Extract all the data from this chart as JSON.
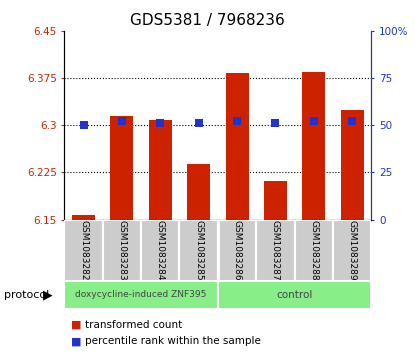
{
  "title": "GDS5381 / 7968236",
  "samples": [
    "GSM1083282",
    "GSM1083283",
    "GSM1083284",
    "GSM1083285",
    "GSM1083286",
    "GSM1083287",
    "GSM1083288",
    "GSM1083289"
  ],
  "red_values": [
    6.158,
    6.315,
    6.308,
    6.238,
    6.383,
    6.212,
    6.385,
    6.325
  ],
  "blue_values": [
    50,
    52,
    51,
    51,
    52,
    51,
    52,
    52
  ],
  "ylim_left": [
    6.15,
    6.45
  ],
  "ylim_right": [
    0,
    100
  ],
  "yticks_left": [
    6.15,
    6.225,
    6.3,
    6.375,
    6.45
  ],
  "yticks_right": [
    0,
    25,
    50,
    75,
    100
  ],
  "ytick_labels_left": [
    "6.15",
    "6.225",
    "6.3",
    "6.375",
    "6.45"
  ],
  "ytick_labels_right": [
    "0",
    "25",
    "50",
    "75",
    "100%"
  ],
  "gridlines": [
    6.225,
    6.3,
    6.375
  ],
  "bar_color": "#cc2200",
  "dot_color": "#2233cc",
  "bar_bottom": 6.15,
  "doxy_label": "doxycycline-induced ZNF395",
  "control_label": "control",
  "protocol_label": "protocol",
  "green_color": "#88ee88",
  "gray_color": "#cccccc",
  "legend_red_label": "transformed count",
  "legend_blue_label": "percentile rank within the sample",
  "bar_width": 0.6,
  "dot_size": 40,
  "left_color": "#cc2200",
  "right_color": "#2233cc",
  "title_fontsize": 11,
  "tick_fontsize": 7.5,
  "sample_fontsize": 6.5,
  "proto_fontsize": 6.5,
  "legend_fontsize": 7.5
}
